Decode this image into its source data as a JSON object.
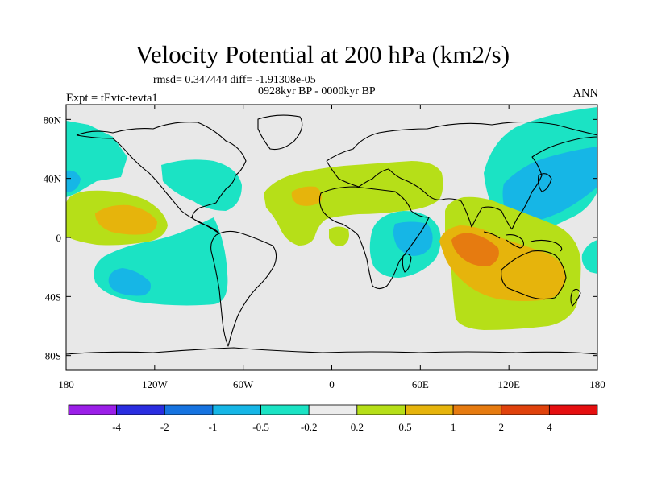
{
  "title": "Velocity Potential at 200 hPa (km2/s)",
  "stats_line": "rmsd= 0.347444  diff= -1.91308e-05",
  "period_line": "0928kyr BP - 0000kyr BP",
  "experiment_label": "Expt = tEvtc-tevta1",
  "season_label": "ANN",
  "axes": {
    "lat_ticks": [
      "80N",
      "40N",
      "0",
      "40S",
      "80S"
    ],
    "lon_ticks": [
      "180",
      "120W",
      "60W",
      "0",
      "60E",
      "120E",
      "180"
    ]
  },
  "colorbar": {
    "labels": [
      "-4",
      "-2",
      "-1",
      "-0.5",
      "-0.2",
      "0.2",
      "0.5",
      "1",
      "2",
      "4"
    ],
    "colors": [
      "#9b1fe8",
      "#2a2de0",
      "#1673e0",
      "#16b6e6",
      "#1be3c4",
      "#ececec",
      "#b6df18",
      "#e6b40c",
      "#e67b10",
      "#e0420c",
      "#e50f10"
    ]
  },
  "palette": {
    "ocean_bg": "#e8e8e8",
    "light_cyan": "#1be3c4",
    "medium_blue": "#16b6e6",
    "light_yellow": "#b6df18",
    "orange": "#e6b40c",
    "dark_orange": "#e67b10"
  }
}
